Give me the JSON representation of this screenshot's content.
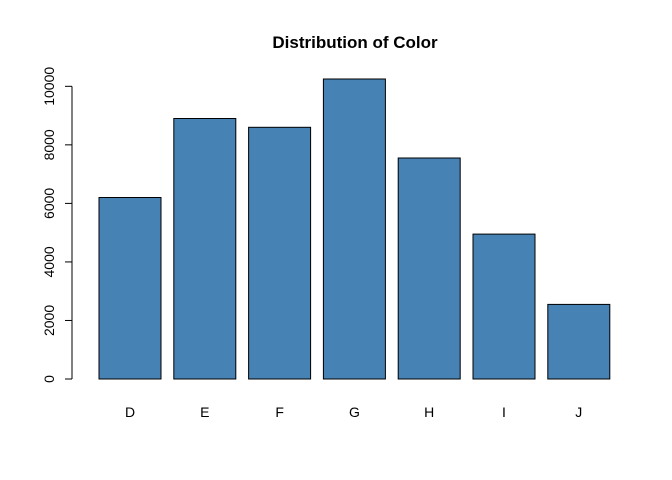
{
  "chart_data": {
    "type": "bar",
    "title": "Distribution of Color",
    "xlabel": "",
    "ylabel": "",
    "categories": [
      "D",
      "E",
      "F",
      "G",
      "H",
      "I",
      "J"
    ],
    "values": [
      6200,
      8900,
      8600,
      10250,
      7550,
      4950,
      2550
    ],
    "ylim": [
      0,
      10250
    ],
    "yticks": [
      0,
      2000,
      4000,
      6000,
      8000,
      10000
    ],
    "ytick_labels": [
      "0",
      "2000",
      "4000",
      "6000",
      "8000",
      "10000"
    ],
    "grid": false,
    "legend": "none",
    "bar_color": "#4682B4",
    "bar_border_color": "#000000"
  }
}
